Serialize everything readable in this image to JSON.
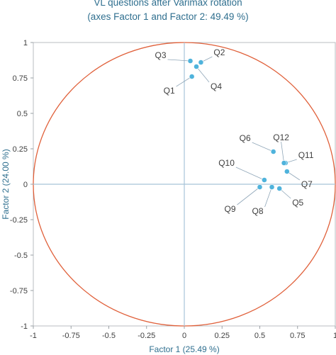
{
  "chart_data": {
    "type": "scatter",
    "title": "VL questions  after Varimax rotation",
    "subtitle": "(axes Factor 1 and Factor 2: 49.49 %)",
    "xlabel": "Factor 1 (25.49 %)",
    "ylabel": "Factor 2 (24.00 %)",
    "xlim": [
      -1,
      1
    ],
    "ylim": [
      -1,
      1
    ],
    "xticks": [
      "-1",
      "-0.75",
      "-0.5",
      "-0.25",
      "0",
      "0.25",
      "0.5",
      "0.75",
      "1"
    ],
    "yticks": [
      "-1",
      "-0.75",
      "-0.5",
      "-0.25",
      "0",
      "0.25",
      "0.5",
      "0.75",
      "1"
    ],
    "grid": false,
    "circle": {
      "radius": 1
    },
    "points": [
      {
        "label": "Q1",
        "x": 0.05,
        "y": 0.76
      },
      {
        "label": "Q2",
        "x": 0.11,
        "y": 0.86
      },
      {
        "label": "Q3",
        "x": 0.04,
        "y": 0.87
      },
      {
        "label": "Q4",
        "x": 0.08,
        "y": 0.83
      },
      {
        "label": "Q5",
        "x": 0.63,
        "y": -0.03
      },
      {
        "label": "Q6",
        "x": 0.59,
        "y": 0.23
      },
      {
        "label": "Q7",
        "x": 0.68,
        "y": 0.09
      },
      {
        "label": "Q8",
        "x": 0.58,
        "y": -0.02
      },
      {
        "label": "Q9",
        "x": 0.5,
        "y": -0.02
      },
      {
        "label": "Q10",
        "x": 0.53,
        "y": 0.03
      },
      {
        "label": "Q11",
        "x": 0.67,
        "y": 0.15
      },
      {
        "label": "Q12",
        "x": 0.66,
        "y": 0.15
      }
    ],
    "colors": {
      "points": "#4fb3dc",
      "circle": "#e0603a",
      "axes": "#a8c4d8",
      "title": "#2f6f8f"
    }
  }
}
